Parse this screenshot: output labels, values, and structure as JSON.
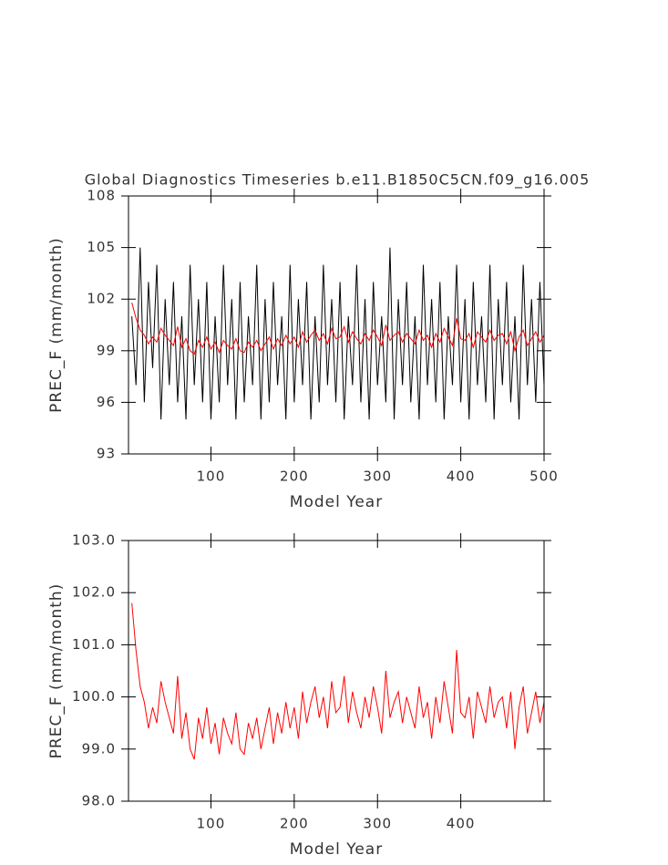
{
  "chart_data": [
    {
      "type": "line",
      "title": "Global Diagnostics Timeseries b.e11.B1850C5CN.f09_g16.005",
      "x_label": "Model Year",
      "y_label": "PREC_F (mm/month)",
      "xlim": [
        1,
        500
      ],
      "xticks": [
        100,
        200,
        300,
        400,
        500
      ],
      "ylim": [
        93,
        108
      ],
      "yticks": [
        93,
        96,
        99,
        102,
        105,
        108
      ],
      "x": [
        5,
        10,
        15,
        20,
        25,
        30,
        35,
        40,
        45,
        50,
        55,
        60,
        65,
        70,
        75,
        80,
        85,
        90,
        95,
        100,
        105,
        110,
        115,
        120,
        125,
        130,
        135,
        140,
        145,
        150,
        155,
        160,
        165,
        170,
        175,
        180,
        185,
        190,
        195,
        200,
        205,
        210,
        215,
        220,
        225,
        230,
        235,
        240,
        245,
        250,
        255,
        260,
        265,
        270,
        275,
        280,
        285,
        290,
        295,
        300,
        305,
        310,
        315,
        320,
        325,
        330,
        335,
        340,
        345,
        350,
        355,
        360,
        365,
        370,
        375,
        380,
        385,
        390,
        395,
        400,
        405,
        410,
        415,
        420,
        425,
        430,
        435,
        440,
        445,
        450,
        455,
        460,
        465,
        470,
        475,
        480,
        485,
        490,
        495,
        500
      ],
      "series": [
        {
          "color": "#000000",
          "values": [
            101,
            97,
            105,
            96,
            103,
            98,
            104,
            95,
            102,
            97,
            103,
            96,
            101,
            95,
            104,
            97,
            102,
            96,
            103,
            95,
            101,
            96,
            104,
            97,
            102,
            95,
            103,
            96,
            101,
            97,
            104,
            95,
            102,
            96,
            103,
            97,
            101,
            95,
            104,
            96,
            102,
            97,
            103,
            95,
            101,
            96,
            104,
            97,
            102,
            96,
            103,
            95,
            101,
            97,
            104,
            96,
            102,
            95,
            103,
            97,
            101,
            96,
            105,
            95,
            102,
            97,
            103,
            96,
            101,
            95,
            104,
            97,
            102,
            96,
            103,
            95,
            101,
            97,
            104,
            96,
            102,
            95,
            103,
            97,
            101,
            96,
            104,
            95,
            102,
            97,
            103,
            96,
            101,
            95,
            104,
            97,
            102,
            96,
            103,
            97
          ]
        },
        {
          "color": "#ff0000",
          "values": [
            101.8,
            100.9,
            100.2,
            99.9,
            99.4,
            99.8,
            99.5,
            100.3,
            99.9,
            99.6,
            99.3,
            100.4,
            99.2,
            99.7,
            99.0,
            98.8,
            99.6,
            99.2,
            99.8,
            99.1,
            99.5,
            98.9,
            99.6,
            99.3,
            99.1,
            99.7,
            99.0,
            98.9,
            99.5,
            99.2,
            99.6,
            99.0,
            99.4,
            99.8,
            99.1,
            99.7,
            99.3,
            99.9,
            99.4,
            99.8,
            99.2,
            100.1,
            99.5,
            99.9,
            100.2,
            99.6,
            100.0,
            99.4,
            100.3,
            99.7,
            99.8,
            100.4,
            99.5,
            100.1,
            99.7,
            99.4,
            100.0,
            99.6,
            100.2,
            99.8,
            99.3,
            100.5,
            99.6,
            99.9,
            100.1,
            99.5,
            100.0,
            99.7,
            99.4,
            100.2,
            99.6,
            99.9,
            99.2,
            100.0,
            99.5,
            100.3,
            99.8,
            99.3,
            100.9,
            99.7,
            99.6,
            100.0,
            99.2,
            100.1,
            99.8,
            99.5,
            100.2,
            99.6,
            99.9,
            100.0,
            99.4,
            100.1,
            99.0,
            99.8,
            100.2,
            99.3,
            99.7,
            100.1,
            99.5,
            99.9
          ]
        }
      ]
    },
    {
      "type": "line",
      "x_label": "Model Year",
      "y_label": "PREC_F (mm/month)",
      "xlim": [
        1,
        500
      ],
      "xticks": [
        100,
        200,
        300,
        400
      ],
      "ylim": [
        98,
        103
      ],
      "yticks": [
        {
          "value": 98,
          "label": "98.0"
        },
        {
          "value": 99,
          "label": "99.0"
        },
        {
          "value": 100,
          "label": "100.0"
        },
        {
          "value": 101,
          "label": "101.0"
        },
        {
          "value": 102,
          "label": "102.0"
        },
        {
          "value": 103,
          "label": "103.0"
        }
      ],
      "x": [
        5,
        10,
        15,
        20,
        25,
        30,
        35,
        40,
        45,
        50,
        55,
        60,
        65,
        70,
        75,
        80,
        85,
        90,
        95,
        100,
        105,
        110,
        115,
        120,
        125,
        130,
        135,
        140,
        145,
        150,
        155,
        160,
        165,
        170,
        175,
        180,
        185,
        190,
        195,
        200,
        205,
        210,
        215,
        220,
        225,
        230,
        235,
        240,
        245,
        250,
        255,
        260,
        265,
        270,
        275,
        280,
        285,
        290,
        295,
        300,
        305,
        310,
        315,
        320,
        325,
        330,
        335,
        340,
        345,
        350,
        355,
        360,
        365,
        370,
        375,
        380,
        385,
        390,
        395,
        400,
        405,
        410,
        415,
        420,
        425,
        430,
        435,
        440,
        445,
        450,
        455,
        460,
        465,
        470,
        475,
        480,
        485,
        490,
        495,
        500
      ],
      "series": [
        {
          "color": "#ff0000",
          "values": [
            101.8,
            100.9,
            100.2,
            99.9,
            99.4,
            99.8,
            99.5,
            100.3,
            99.9,
            99.6,
            99.3,
            100.4,
            99.2,
            99.7,
            99.0,
            98.8,
            99.6,
            99.2,
            99.8,
            99.1,
            99.5,
            98.9,
            99.6,
            99.3,
            99.1,
            99.7,
            99.0,
            98.9,
            99.5,
            99.2,
            99.6,
            99.0,
            99.4,
            99.8,
            99.1,
            99.7,
            99.3,
            99.9,
            99.4,
            99.8,
            99.2,
            100.1,
            99.5,
            99.9,
            100.2,
            99.6,
            100.0,
            99.4,
            100.3,
            99.7,
            99.8,
            100.4,
            99.5,
            100.1,
            99.7,
            99.4,
            100.0,
            99.6,
            100.2,
            99.8,
            99.3,
            100.5,
            99.6,
            99.9,
            100.1,
            99.5,
            100.0,
            99.7,
            99.4,
            100.2,
            99.6,
            99.9,
            99.2,
            100.0,
            99.5,
            100.3,
            99.8,
            99.3,
            100.9,
            99.7,
            99.6,
            100.0,
            99.2,
            100.1,
            99.8,
            99.5,
            100.2,
            99.6,
            99.9,
            100.0,
            99.4,
            100.1,
            99.0,
            99.8,
            100.2,
            99.3,
            99.7,
            100.1,
            99.5,
            99.9
          ]
        }
      ]
    }
  ]
}
